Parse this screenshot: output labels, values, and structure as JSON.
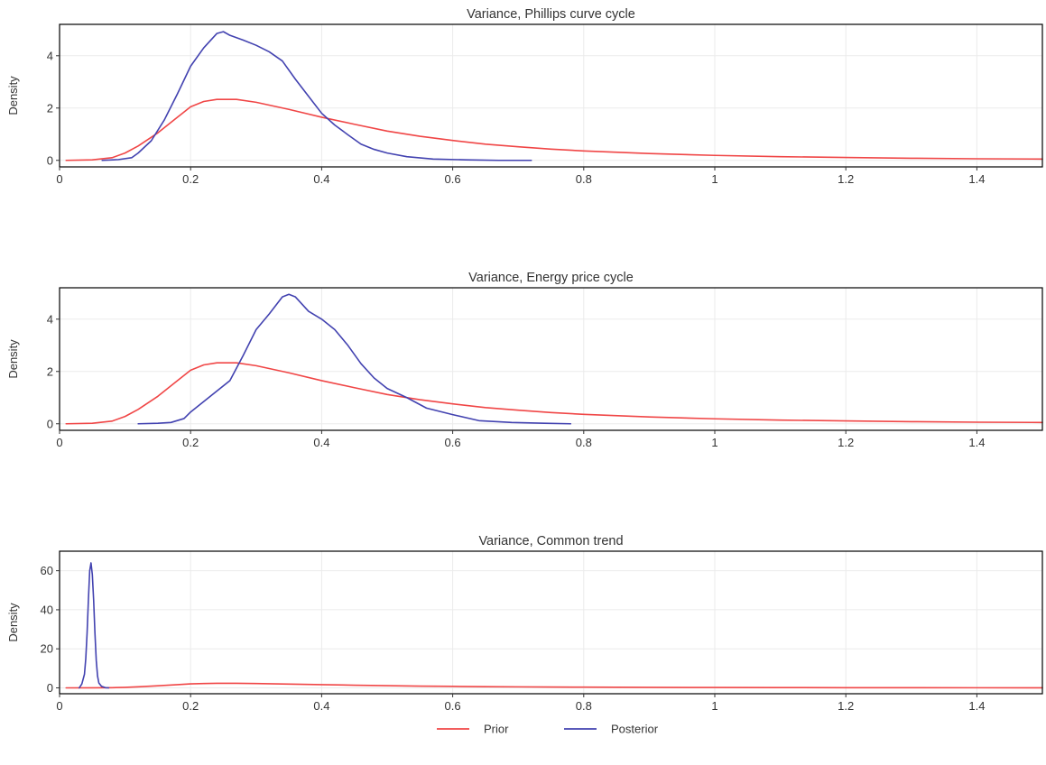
{
  "chart_data": [
    {
      "type": "line",
      "title": "Variance, Phillips curve cycle",
      "xlabel": "",
      "ylabel": "Density",
      "xlim": [
        0,
        1.5
      ],
      "ylim": [
        -0.25,
        5.2
      ],
      "xticks": [
        0,
        0.2,
        0.4,
        0.6,
        0.8,
        1,
        1.2,
        1.4
      ],
      "yticks": [
        0,
        2,
        4
      ],
      "grid": true,
      "series": [
        {
          "name": "Prior",
          "x": [
            0.01,
            0.05,
            0.08,
            0.1,
            0.12,
            0.15,
            0.18,
            0.2,
            0.22,
            0.24,
            0.27,
            0.3,
            0.35,
            0.4,
            0.45,
            0.5,
            0.55,
            0.6,
            0.65,
            0.7,
            0.75,
            0.8,
            0.9,
            1.0,
            1.1,
            1.2,
            1.3,
            1.4,
            1.5
          ],
          "y": [
            0.0,
            0.02,
            0.1,
            0.28,
            0.55,
            1.05,
            1.65,
            2.05,
            2.25,
            2.33,
            2.33,
            2.22,
            1.95,
            1.65,
            1.38,
            1.12,
            0.92,
            0.76,
            0.62,
            0.52,
            0.43,
            0.36,
            0.26,
            0.19,
            0.14,
            0.11,
            0.08,
            0.06,
            0.05
          ]
        },
        {
          "name": "Posterior",
          "x": [
            0.065,
            0.09,
            0.11,
            0.12,
            0.14,
            0.16,
            0.18,
            0.2,
            0.22,
            0.24,
            0.25,
            0.26,
            0.28,
            0.3,
            0.32,
            0.34,
            0.36,
            0.38,
            0.4,
            0.42,
            0.44,
            0.46,
            0.48,
            0.5,
            0.53,
            0.57,
            0.62,
            0.67,
            0.72
          ],
          "y": [
            0.0,
            0.03,
            0.1,
            0.28,
            0.75,
            1.55,
            2.55,
            3.6,
            4.3,
            4.85,
            4.92,
            4.78,
            4.6,
            4.4,
            4.15,
            3.8,
            3.1,
            2.45,
            1.8,
            1.35,
            0.98,
            0.62,
            0.42,
            0.28,
            0.14,
            0.05,
            0.02,
            0.0,
            0.0
          ]
        }
      ]
    },
    {
      "type": "line",
      "title": "Variance, Energy price cycle",
      "xlabel": "",
      "ylabel": "Density",
      "xlim": [
        0,
        1.5
      ],
      "ylim": [
        -0.25,
        5.2
      ],
      "xticks": [
        0,
        0.2,
        0.4,
        0.6,
        0.8,
        1,
        1.2,
        1.4
      ],
      "yticks": [
        0,
        2,
        4
      ],
      "grid": true,
      "series": [
        {
          "name": "Prior",
          "x": [
            0.01,
            0.05,
            0.08,
            0.1,
            0.12,
            0.15,
            0.18,
            0.2,
            0.22,
            0.24,
            0.27,
            0.3,
            0.35,
            0.4,
            0.45,
            0.5,
            0.55,
            0.6,
            0.65,
            0.7,
            0.75,
            0.8,
            0.9,
            1.0,
            1.1,
            1.2,
            1.3,
            1.4,
            1.5
          ],
          "y": [
            0.0,
            0.02,
            0.1,
            0.28,
            0.55,
            1.05,
            1.65,
            2.05,
            2.25,
            2.33,
            2.33,
            2.22,
            1.95,
            1.65,
            1.38,
            1.12,
            0.92,
            0.76,
            0.62,
            0.52,
            0.43,
            0.36,
            0.26,
            0.19,
            0.14,
            0.11,
            0.08,
            0.06,
            0.05
          ]
        },
        {
          "name": "Posterior",
          "x": [
            0.12,
            0.15,
            0.17,
            0.19,
            0.2,
            0.22,
            0.24,
            0.26,
            0.28,
            0.3,
            0.32,
            0.34,
            0.35,
            0.36,
            0.38,
            0.4,
            0.42,
            0.44,
            0.46,
            0.48,
            0.5,
            0.53,
            0.56,
            0.6,
            0.64,
            0.69,
            0.74,
            0.78
          ],
          "y": [
            0.0,
            0.02,
            0.05,
            0.2,
            0.45,
            0.85,
            1.25,
            1.65,
            2.6,
            3.6,
            4.2,
            4.85,
            4.95,
            4.85,
            4.3,
            4.0,
            3.6,
            3.0,
            2.3,
            1.75,
            1.35,
            1.0,
            0.6,
            0.35,
            0.12,
            0.05,
            0.02,
            0.0
          ]
        }
      ]
    },
    {
      "type": "line",
      "title": "Variance, Common trend",
      "xlabel": "",
      "ylabel": "Density",
      "xlim": [
        0,
        1.5
      ],
      "ylim": [
        -3,
        70
      ],
      "xticks": [
        0,
        0.2,
        0.4,
        0.6,
        0.8,
        1,
        1.2,
        1.4
      ],
      "yticks": [
        0,
        20,
        40,
        60
      ],
      "grid": true,
      "series": [
        {
          "name": "Prior",
          "x": [
            0.01,
            0.05,
            0.08,
            0.1,
            0.12,
            0.15,
            0.18,
            0.2,
            0.22,
            0.24,
            0.27,
            0.3,
            0.35,
            0.4,
            0.45,
            0.5,
            0.55,
            0.6,
            0.65,
            0.7,
            0.75,
            0.8,
            0.9,
            1.0,
            1.1,
            1.2,
            1.3,
            1.4,
            1.5
          ],
          "y": [
            0.0,
            0.02,
            0.1,
            0.28,
            0.55,
            1.05,
            1.65,
            2.05,
            2.25,
            2.33,
            2.33,
            2.22,
            1.95,
            1.65,
            1.38,
            1.12,
            0.92,
            0.76,
            0.62,
            0.52,
            0.43,
            0.36,
            0.26,
            0.19,
            0.14,
            0.11,
            0.08,
            0.06,
            0.05
          ]
        },
        {
          "name": "Posterior",
          "x": [
            0.03,
            0.034,
            0.038,
            0.04,
            0.042,
            0.044,
            0.046,
            0.048,
            0.05,
            0.052,
            0.054,
            0.056,
            0.058,
            0.06,
            0.064,
            0.07,
            0.075
          ],
          "y": [
            0.0,
            2.0,
            7.0,
            15.0,
            28.0,
            45.0,
            60.0,
            64.0,
            58.0,
            45.0,
            28.0,
            14.0,
            6.0,
            2.5,
            0.8,
            0.1,
            0.0
          ]
        }
      ]
    }
  ],
  "legend": {
    "items": [
      {
        "label": "Prior",
        "color": "#f04646"
      },
      {
        "label": "Posterior",
        "color": "#4242b0"
      }
    ]
  },
  "colors": {
    "prior": "#f04646",
    "posterior": "#4242b0",
    "grid": "#ebebeb",
    "border": "#000000",
    "text": "#333333"
  }
}
